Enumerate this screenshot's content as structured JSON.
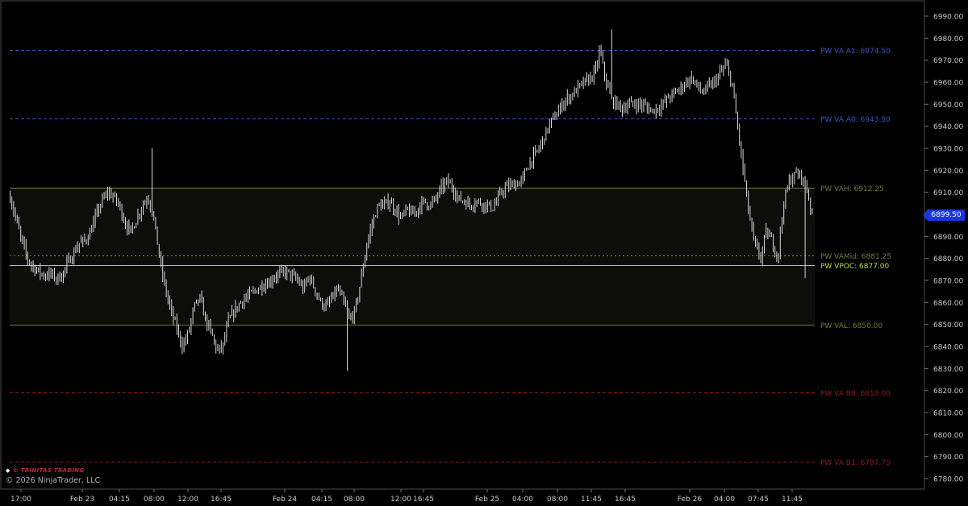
{
  "chart_data": {
    "type": "candlestick",
    "ylim": [
      6775,
      6995
    ],
    "y_ticks": [
      "6780.00",
      "6790.00",
      "6800.00",
      "6810.00",
      "6820.00",
      "6830.00",
      "6840.00",
      "6850.00",
      "6860.00",
      "6870.00",
      "6880.00",
      "6890.00",
      "6900.00",
      "6910.00",
      "6920.00",
      "6930.00",
      "6940.00",
      "6950.00",
      "6960.00",
      "6970.00",
      "6980.00",
      "6990.00"
    ],
    "x_ticks": [
      "17:00",
      "Feb 23",
      "04:15",
      "08:00",
      "12:00",
      "16:45",
      "Feb 24",
      "04:15",
      "08:00",
      "12:00",
      "16:45",
      "Feb 25",
      "04:00",
      "08:00",
      "11:45",
      "16:45",
      "Feb 26",
      "04:00",
      "07:45",
      "11:45"
    ],
    "current_price": 6899.5,
    "current_price_label": "6899.50",
    "value_area": {
      "high": 6912.25,
      "low": 6850.0
    },
    "levels": [
      {
        "label": "PW VA A1: 6974.50",
        "value": 6974.5,
        "color": "#3a56b8",
        "style": "dashed"
      },
      {
        "label": "PW VA A0: 6943.50",
        "value": 6943.5,
        "color": "#3a56b8",
        "style": "dashed"
      },
      {
        "label": "PW VAH: 6912.25",
        "value": 6912.25,
        "color": "#6e7d3a",
        "style": "solid"
      },
      {
        "label": "PW VAMid: 6881.25",
        "value": 6881.25,
        "color": "#6e7d3a",
        "style": "dotted"
      },
      {
        "label": "PW VPOC: 6877.00",
        "value": 6877.0,
        "color": "#b6d84a",
        "style": "solid"
      },
      {
        "label": "PW VAL: 6850.00",
        "value": 6850.0,
        "color": "#6e7d3a",
        "style": "solid"
      },
      {
        "label": "PW VA B0: 6819.00",
        "value": 6819.0,
        "color": "#8a1c1c",
        "style": "dashed"
      },
      {
        "label": "PW VA B1: 6787.75",
        "value": 6787.75,
        "color": "#8a1c1c",
        "style": "dashed"
      }
    ],
    "price_path": [
      [
        0,
        6908
      ],
      [
        4,
        6898
      ],
      [
        8,
        6888
      ],
      [
        12,
        6880
      ],
      [
        16,
        6876
      ],
      [
        20,
        6874
      ],
      [
        24,
        6872
      ],
      [
        28,
        6873
      ],
      [
        32,
        6871
      ],
      [
        36,
        6872
      ],
      [
        40,
        6878
      ],
      [
        44,
        6882
      ],
      [
        48,
        6887
      ],
      [
        52,
        6888
      ],
      [
        56,
        6892
      ],
      [
        60,
        6900
      ],
      [
        64,
        6906
      ],
      [
        68,
        6910
      ],
      [
        72,
        6908
      ],
      [
        76,
        6904
      ],
      [
        80,
        6896
      ],
      [
        84,
        6892
      ],
      [
        88,
        6898
      ],
      [
        92,
        6904
      ],
      [
        96,
        6908
      ],
      [
        100,
        6898
      ],
      [
        104,
        6880
      ],
      [
        108,
        6866
      ],
      [
        112,
        6856
      ],
      [
        116,
        6848
      ],
      [
        120,
        6840
      ],
      [
        124,
        6846
      ],
      [
        128,
        6858
      ],
      [
        132,
        6862
      ],
      [
        136,
        6852
      ],
      [
        140,
        6846
      ],
      [
        144,
        6838
      ],
      [
        148,
        6840
      ],
      [
        152,
        6852
      ],
      [
        156,
        6856
      ],
      [
        160,
        6860
      ],
      [
        164,
        6862
      ],
      [
        168,
        6864
      ],
      [
        172,
        6866
      ],
      [
        176,
        6868
      ],
      [
        180,
        6869
      ],
      [
        184,
        6872
      ],
      [
        188,
        6873
      ],
      [
        192,
        6874
      ],
      [
        196,
        6872
      ],
      [
        200,
        6870
      ],
      [
        204,
        6866
      ],
      [
        208,
        6872
      ],
      [
        212,
        6866
      ],
      [
        216,
        6860
      ],
      [
        220,
        6858
      ],
      [
        224,
        6862
      ],
      [
        228,
        6866
      ],
      [
        232,
        6860
      ],
      [
        236,
        6852
      ],
      [
        240,
        6856
      ],
      [
        244,
        6870
      ],
      [
        248,
        6886
      ],
      [
        252,
        6896
      ],
      [
        256,
        6904
      ],
      [
        260,
        6904
      ],
      [
        264,
        6906
      ],
      [
        268,
        6902
      ],
      [
        272,
        6898
      ],
      [
        276,
        6902
      ],
      [
        280,
        6900
      ],
      [
        284,
        6903
      ],
      [
        288,
        6906
      ],
      [
        292,
        6904
      ],
      [
        296,
        6907
      ],
      [
        300,
        6912
      ],
      [
        304,
        6915
      ],
      [
        308,
        6912
      ],
      [
        312,
        6907
      ],
      [
        316,
        6906
      ],
      [
        320,
        6904
      ],
      [
        324,
        6906
      ],
      [
        328,
        6905
      ],
      [
        332,
        6904
      ],
      [
        336,
        6903
      ],
      [
        340,
        6908
      ],
      [
        344,
        6912
      ],
      [
        348,
        6913
      ],
      [
        352,
        6914
      ],
      [
        356,
        6915
      ],
      [
        360,
        6922
      ],
      [
        364,
        6926
      ],
      [
        368,
        6930
      ],
      [
        372,
        6936
      ],
      [
        376,
        6942
      ],
      [
        380,
        6945
      ],
      [
        384,
        6950
      ],
      [
        388,
        6953
      ],
      [
        392,
        6955
      ],
      [
        396,
        6958
      ],
      [
        400,
        6960
      ],
      [
        404,
        6962
      ],
      [
        408,
        6966
      ],
      [
        410,
        6975
      ],
      [
        414,
        6962
      ],
      [
        418,
        6952
      ],
      [
        422,
        6950
      ],
      [
        426,
        6948
      ],
      [
        430,
        6950
      ],
      [
        434,
        6950
      ],
      [
        438,
        6950
      ],
      [
        442,
        6949
      ],
      [
        446,
        6947
      ],
      [
        450,
        6948
      ],
      [
        454,
        6950
      ],
      [
        458,
        6953
      ],
      [
        462,
        6955
      ],
      [
        466,
        6957
      ],
      [
        470,
        6960
      ],
      [
        474,
        6962
      ],
      [
        478,
        6958
      ],
      [
        482,
        6955
      ],
      [
        486,
        6958
      ],
      [
        490,
        6960
      ],
      [
        494,
        6964
      ],
      [
        498,
        6968
      ],
      [
        502,
        6960
      ],
      [
        506,
        6940
      ],
      [
        510,
        6920
      ],
      [
        514,
        6900
      ],
      [
        518,
        6886
      ],
      [
        522,
        6880
      ],
      [
        526,
        6892
      ],
      [
        530,
        6888
      ],
      [
        534,
        6880
      ],
      [
        538,
        6905
      ],
      [
        542,
        6915
      ],
      [
        546,
        6918
      ],
      [
        550,
        6918
      ],
      [
        554,
        6912
      ],
      [
        558,
        6900
      ]
    ]
  }
}
